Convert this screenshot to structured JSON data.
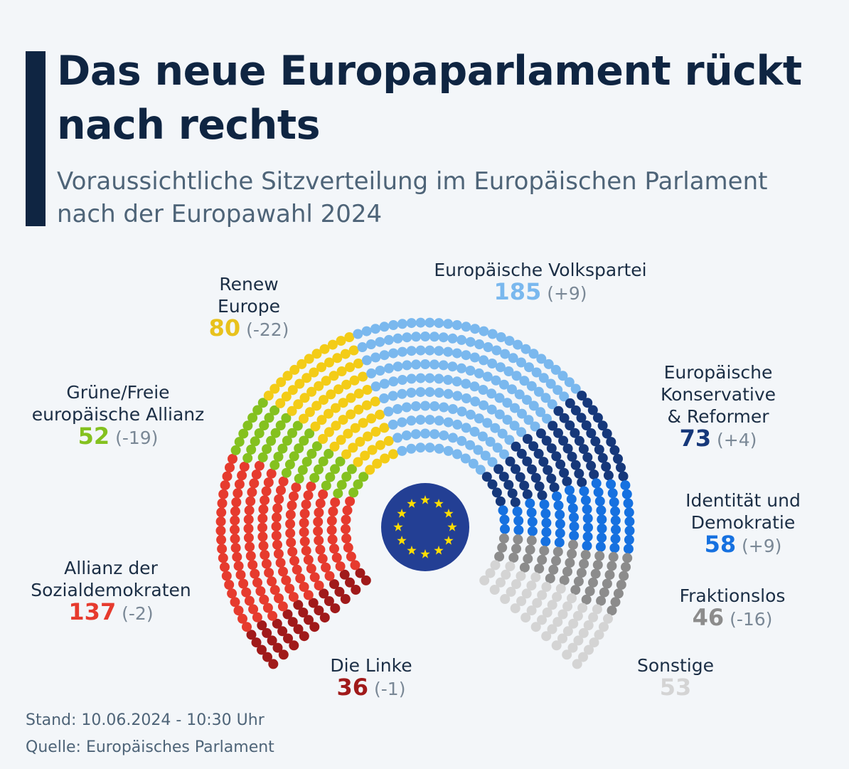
{
  "header": {
    "title": "Das neue Europaparlament rückt nach rechts",
    "subtitle": "Voraussichtliche Sitzverteilung im Europäischen Parlament nach der Europawahl 2024"
  },
  "footer": {
    "stand": "Stand: 10.06.2024 - 10:30 Uhr",
    "source": "Quelle: Europäisches Parlament"
  },
  "emblem": {
    "icon": "eu-flag-icon",
    "color": "#233f94",
    "star_color": "#ffdd00"
  },
  "chart_data": {
    "type": "parliament",
    "total_seats": 720,
    "series": [
      {
        "key": "linke",
        "name": "Die Linke",
        "seats": 36,
        "change": "(-1)",
        "color": "#a01a1a"
      },
      {
        "key": "sd",
        "name": "Allianz der Sozialdemokraten",
        "seats": 137,
        "change": "(-2)",
        "color": "#e63b2e"
      },
      {
        "key": "greens",
        "name": "Grüne/Freie europäische Allianz",
        "seats": 52,
        "change": "(-19)",
        "color": "#84c11f"
      },
      {
        "key": "renew",
        "name": "Renew Europe",
        "seats": 80,
        "change": "(-22)",
        "color": "#f3cc17"
      },
      {
        "key": "epp",
        "name": "Europäische Volkspartei",
        "seats": 185,
        "change": "(+9)",
        "color": "#7ab8ee"
      },
      {
        "key": "ecr",
        "name": "Europäische Konservative & Reformer",
        "seats": 73,
        "change": "(+4)",
        "color": "#16387a"
      },
      {
        "key": "id",
        "name": "Identität und Demokratie",
        "seats": 58,
        "change": "(+9)",
        "color": "#1671e0"
      },
      {
        "key": "ni",
        "name": "Fraktionslos",
        "seats": 46,
        "change": "(-16)",
        "color": "#8c8c8c"
      },
      {
        "key": "other",
        "name": "Sonstige",
        "seats": 53,
        "change": "",
        "color": "#d4d4d4"
      }
    ]
  },
  "labels": {
    "linke": {
      "name": "Die Linke",
      "value": "36",
      "change": "(-1)"
    },
    "sd": {
      "name": "Allianz der\nSozialdemokraten",
      "value": "137",
      "change": "(-2)"
    },
    "greens": {
      "name": "Grüne/Freie\neuropäische Allianz",
      "value": "52",
      "change": "(-19)"
    },
    "renew": {
      "name": "Renew\nEurope",
      "value": "80",
      "change": "(-22)"
    },
    "epp": {
      "name": "Europäische Volkspartei",
      "value": "185",
      "change": "(+9)"
    },
    "ecr": {
      "name": "Europäische\nKonservative\n& Reformer",
      "value": "73",
      "change": "(+4)"
    },
    "id": {
      "name": "Identität und\nDemokratie",
      "value": "58",
      "change": "(+9)"
    },
    "ni": {
      "name": "Fraktionslos",
      "value": "46",
      "change": "(-16)"
    },
    "other": {
      "name": "Sonstige",
      "value": "53",
      "change": ""
    }
  }
}
